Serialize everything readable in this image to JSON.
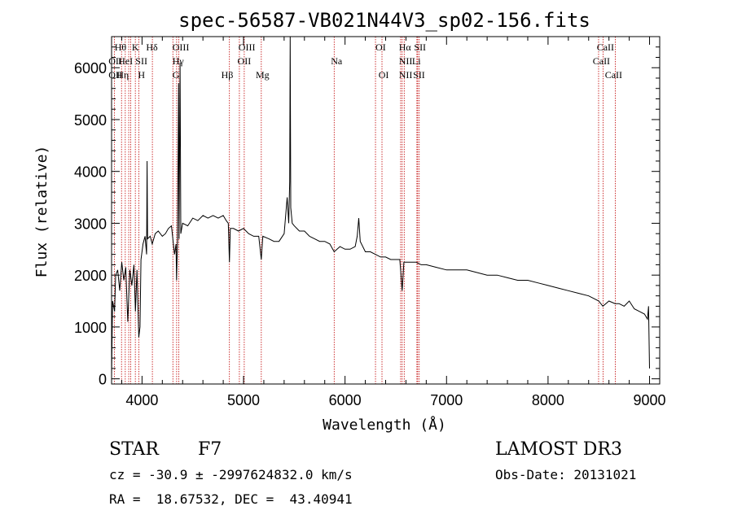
{
  "chart_data": {
    "type": "line",
    "title": "spec-56587-VB021N44V3_sp02-156.fits",
    "xlabel": "Wavelength (Å)",
    "ylabel": "Flux (relative)",
    "xlim": [
      3700,
      9100
    ],
    "ylim": [
      -100,
      6600
    ],
    "xticks": [
      4000,
      5000,
      6000,
      7000,
      8000,
      9000
    ],
    "yticks": [
      0,
      1000,
      2000,
      3000,
      4000,
      5000,
      6000
    ],
    "x_tick_labels": [
      "4000",
      "5000",
      "6000",
      "7000",
      "8000",
      "9000"
    ],
    "y_tick_labels": [
      "0",
      "1000",
      "2000",
      "3000",
      "4000",
      "5000",
      "6000"
    ],
    "series": [
      {
        "name": "spectrum",
        "points": [
          [
            3700,
            50
          ],
          [
            3710,
            1500
          ],
          [
            3720,
            1400
          ],
          [
            3730,
            1300
          ],
          [
            3740,
            2000
          ],
          [
            3760,
            2100
          ],
          [
            3780,
            1700
          ],
          [
            3800,
            2250
          ],
          [
            3820,
            1900
          ],
          [
            3840,
            2150
          ],
          [
            3860,
            1100
          ],
          [
            3880,
            2100
          ],
          [
            3900,
            1800
          ],
          [
            3920,
            2200
          ],
          [
            3935,
            1300
          ],
          [
            3950,
            2100
          ],
          [
            3968,
            800
          ],
          [
            3980,
            1000
          ],
          [
            3990,
            2300
          ],
          [
            4010,
            2600
          ],
          [
            4030,
            2750
          ],
          [
            4045,
            2400
          ],
          [
            4050,
            4200
          ],
          [
            4055,
            2700
          ],
          [
            4080,
            2750
          ],
          [
            4100,
            2600
          ],
          [
            4130,
            2800
          ],
          [
            4160,
            2850
          ],
          [
            4200,
            2750
          ],
          [
            4230,
            2800
          ],
          [
            4260,
            2900
          ],
          [
            4290,
            2950
          ],
          [
            4320,
            2400
          ],
          [
            4335,
            2600
          ],
          [
            4340,
            1900
          ],
          [
            4350,
            2700
          ],
          [
            4360,
            5700
          ],
          [
            4365,
            2700
          ],
          [
            4375,
            6100
          ],
          [
            4382,
            2800
          ],
          [
            4400,
            3000
          ],
          [
            4450,
            2950
          ],
          [
            4500,
            3100
          ],
          [
            4550,
            3050
          ],
          [
            4600,
            3150
          ],
          [
            4650,
            3100
          ],
          [
            4700,
            3150
          ],
          [
            4750,
            3100
          ],
          [
            4800,
            3150
          ],
          [
            4830,
            3050
          ],
          [
            4850,
            3000
          ],
          [
            4861,
            2250
          ],
          [
            4870,
            2900
          ],
          [
            4900,
            2900
          ],
          [
            4950,
            2850
          ],
          [
            5000,
            2900
          ],
          [
            5050,
            2800
          ],
          [
            5100,
            2750
          ],
          [
            5150,
            2750
          ],
          [
            5175,
            2300
          ],
          [
            5190,
            2750
          ],
          [
            5250,
            2700
          ],
          [
            5300,
            2650
          ],
          [
            5350,
            2650
          ],
          [
            5400,
            2800
          ],
          [
            5430,
            3500
          ],
          [
            5445,
            3000
          ],
          [
            5455,
            3800
          ],
          [
            5460,
            6600
          ],
          [
            5465,
            3300
          ],
          [
            5480,
            3000
          ],
          [
            5500,
            2950
          ],
          [
            5550,
            2850
          ],
          [
            5600,
            2850
          ],
          [
            5650,
            2750
          ],
          [
            5700,
            2700
          ],
          [
            5750,
            2650
          ],
          [
            5800,
            2650
          ],
          [
            5850,
            2600
          ],
          [
            5893,
            2450
          ],
          [
            5950,
            2550
          ],
          [
            6000,
            2500
          ],
          [
            6050,
            2500
          ],
          [
            6100,
            2550
          ],
          [
            6120,
            2750
          ],
          [
            6135,
            3100
          ],
          [
            6150,
            2650
          ],
          [
            6200,
            2450
          ],
          [
            6250,
            2450
          ],
          [
            6300,
            2400
          ],
          [
            6350,
            2350
          ],
          [
            6400,
            2350
          ],
          [
            6450,
            2300
          ],
          [
            6500,
            2300
          ],
          [
            6540,
            2300
          ],
          [
            6563,
            1700
          ],
          [
            6580,
            2250
          ],
          [
            6600,
            2250
          ],
          [
            6650,
            2250
          ],
          [
            6700,
            2250
          ],
          [
            6750,
            2200
          ],
          [
            6800,
            2200
          ],
          [
            6900,
            2150
          ],
          [
            7000,
            2100
          ],
          [
            7100,
            2100
          ],
          [
            7200,
            2100
          ],
          [
            7300,
            2050
          ],
          [
            7400,
            2000
          ],
          [
            7500,
            2000
          ],
          [
            7600,
            1950
          ],
          [
            7700,
            1900
          ],
          [
            7800,
            1900
          ],
          [
            7900,
            1850
          ],
          [
            8000,
            1800
          ],
          [
            8100,
            1750
          ],
          [
            8200,
            1700
          ],
          [
            8300,
            1650
          ],
          [
            8400,
            1600
          ],
          [
            8500,
            1500
          ],
          [
            8540,
            1400
          ],
          [
            8600,
            1500
          ],
          [
            8660,
            1450
          ],
          [
            8700,
            1450
          ],
          [
            8750,
            1400
          ],
          [
            8800,
            1500
          ],
          [
            8850,
            1350
          ],
          [
            8900,
            1300
          ],
          [
            8950,
            1250
          ],
          [
            8980,
            1150
          ],
          [
            8990,
            1400
          ],
          [
            9000,
            200
          ]
        ]
      }
    ],
    "lines": [
      {
        "x": 3727,
        "labels": [
          "OII",
          "OII"
        ]
      },
      {
        "x": 3798,
        "labels": [
          "Hθ"
        ]
      },
      {
        "x": 3835,
        "labels": [
          "Hη"
        ]
      },
      {
        "x": 3869,
        "labels": [
          "HeI"
        ]
      },
      {
        "x": 3889,
        "labels": [
          "Hζ"
        ]
      },
      {
        "x": 3934,
        "labels": [
          "K"
        ]
      },
      {
        "x": 3968,
        "labels": [
          "H",
          "SII"
        ]
      },
      {
        "x": 4102,
        "labels": [
          "Hδ"
        ]
      },
      {
        "x": 4304,
        "labels": [
          "G"
        ]
      },
      {
        "x": 4341,
        "labels": [
          "Hγ"
        ]
      },
      {
        "x": 4363,
        "labels": [
          "OIII"
        ]
      },
      {
        "x": 4861,
        "labels": [
          "Hβ"
        ]
      },
      {
        "x": 4959,
        "labels": [
          "OIII"
        ]
      },
      {
        "x": 5007,
        "labels": [
          "OIII"
        ]
      },
      {
        "x": 5175,
        "labels": [
          "Mg"
        ]
      },
      {
        "x": 5893,
        "labels": [
          "Na"
        ]
      },
      {
        "x": 6300,
        "labels": [
          "OI"
        ]
      },
      {
        "x": 6364,
        "labels": [
          "OI"
        ]
      },
      {
        "x": 6548,
        "labels": [
          "NII"
        ]
      },
      {
        "x": 6563,
        "labels": [
          "Hα"
        ]
      },
      {
        "x": 6583,
        "labels": [
          "NII"
        ]
      },
      {
        "x": 6708,
        "labels": [
          "Li"
        ]
      },
      {
        "x": 6716,
        "labels": [
          "SII"
        ]
      },
      {
        "x": 6731,
        "labels": [
          "SII"
        ]
      },
      {
        "x": 8498,
        "labels": [
          "CaII"
        ]
      },
      {
        "x": 8542,
        "labels": [
          "CaII"
        ]
      },
      {
        "x": 8662,
        "labels": [
          "CaII"
        ]
      }
    ],
    "line_labels": [
      {
        "text": "Hθ",
        "x": 3730,
        "row": 1
      },
      {
        "text": "K",
        "x": 3900,
        "row": 1
      },
      {
        "text": "Hδ",
        "x": 4040,
        "row": 1
      },
      {
        "text": "OIII",
        "x": 4300,
        "row": 1
      },
      {
        "text": "OIII",
        "x": 4950,
        "row": 1
      },
      {
        "text": "OI",
        "x": 6300,
        "row": 1
      },
      {
        "text": "Hα",
        "x": 6530,
        "row": 1
      },
      {
        "text": "SII",
        "x": 6680,
        "row": 1
      },
      {
        "text": "CaII",
        "x": 8480,
        "row": 1
      },
      {
        "text": "OII",
        "x": 3670,
        "row": 2
      },
      {
        "text": "HeI",
        "x": 3765,
        "row": 2
      },
      {
        "text": "SII",
        "x": 3935,
        "row": 2
      },
      {
        "text": "Hγ",
        "x": 4300,
        "row": 2
      },
      {
        "text": "OII",
        "x": 4940,
        "row": 2
      },
      {
        "text": "Na",
        "x": 5860,
        "row": 2
      },
      {
        "text": "NII",
        "x": 6530,
        "row": 2
      },
      {
        "text": "Li",
        "x": 6660,
        "row": 2
      },
      {
        "text": "CaII",
        "x": 8440,
        "row": 2
      },
      {
        "text": "OII",
        "x": 3670,
        "row": 3
      },
      {
        "text": "Hη",
        "x": 3750,
        "row": 3
      },
      {
        "text": "H",
        "x": 3960,
        "row": 3
      },
      {
        "text": "G",
        "x": 4300,
        "row": 3
      },
      {
        "text": "Hβ",
        "x": 4780,
        "row": 3
      },
      {
        "text": "Mg",
        "x": 5120,
        "row": 3
      },
      {
        "text": "OI",
        "x": 6330,
        "row": 3
      },
      {
        "text": "NII",
        "x": 6530,
        "row": 3
      },
      {
        "text": "SII",
        "x": 6670,
        "row": 3
      },
      {
        "text": "CaII",
        "x": 8560,
        "row": 3
      }
    ],
    "grid": false
  },
  "info": {
    "object_class": "STAR",
    "subclass": "F7",
    "survey": "LAMOST DR3",
    "cz_text": "cz = -30.9 ± -2997624832.0 km/s",
    "obs_date": "Obs-Date: 20131021",
    "coords": "RA =  18.67532, DEC =  43.40941"
  },
  "colors": {
    "spectrum": "#000000",
    "line_markers": "#c00000",
    "axes": "#000000"
  }
}
